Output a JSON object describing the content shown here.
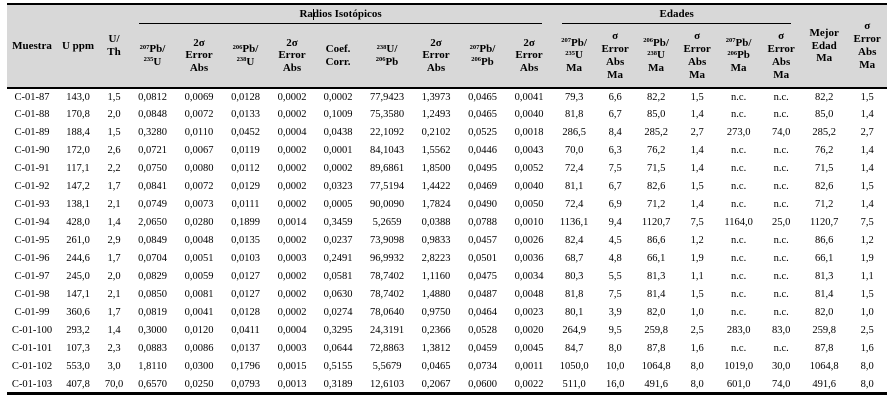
{
  "colors": {
    "header_bg": "#d8d8d8",
    "border": "#000000",
    "text": "#000000"
  },
  "table": {
    "group_headers": {
      "radios_isotopicos": "Radios Isotópicos",
      "edades": "Edades"
    },
    "column_headers": [
      "Muestra",
      "U ppm",
      "U/\nTh",
      "{207}Pb/\n{235}U",
      "2σ\nError\nAbs",
      "{206}Pb/\n{238}U",
      "2σ\nError\nAbs",
      "Coef.\nCorr.",
      "{238}U/\n{206}Pb",
      "2σ\nError\nAbs",
      "{207}Pb/\n{206}Pb",
      "2σ\nError\nAbs",
      "{207}Pb/\n{235}U\nMa",
      "σ\nError\nAbs\nMa",
      "{206}Pb/\n{238}U\nMa",
      "σ\nError\nAbs\nMa",
      "{207}Pb/\n{206}Pb\nMa",
      "σ\nError\nAbs\nMa",
      "Mejor\nEdad\nMa",
      "σ\nError\nAbs\nMa"
    ],
    "rows": [
      [
        "C-01-87",
        "143,0",
        "1,5",
        "0,0812",
        "0,0069",
        "0,0128",
        "0,0002",
        "0,0002",
        "77,9423",
        "1,3973",
        "0,0465",
        "0,0041",
        "79,3",
        "6,6",
        "82,2",
        "1,5",
        "n.c.",
        "n.c.",
        "82,2",
        "1,5"
      ],
      [
        "C-01-88",
        "170,8",
        "2,0",
        "0,0848",
        "0,0072",
        "0,0133",
        "0,0002",
        "0,1009",
        "75,3580",
        "1,2493",
        "0,0465",
        "0,0040",
        "81,8",
        "6,7",
        "85,0",
        "1,4",
        "n.c.",
        "n.c.",
        "85,0",
        "1,4"
      ],
      [
        "C-01-89",
        "188,4",
        "1,5",
        "0,3280",
        "0,0110",
        "0,0452",
        "0,0004",
        "0,0438",
        "22,1092",
        "0,2102",
        "0,0525",
        "0,0018",
        "286,5",
        "8,4",
        "285,2",
        "2,7",
        "273,0",
        "74,0",
        "285,2",
        "2,7"
      ],
      [
        "C-01-90",
        "172,0",
        "2,6",
        "0,0721",
        "0,0067",
        "0,0119",
        "0,0002",
        "0,0001",
        "84,1043",
        "1,5562",
        "0,0446",
        "0,0043",
        "70,0",
        "6,3",
        "76,2",
        "1,4",
        "n.c.",
        "n.c.",
        "76,2",
        "1,4"
      ],
      [
        "C-01-91",
        "117,1",
        "2,2",
        "0,0750",
        "0,0080",
        "0,0112",
        "0,0002",
        "0,0002",
        "89,6861",
        "1,8500",
        "0,0495",
        "0,0052",
        "72,4",
        "7,5",
        "71,5",
        "1,4",
        "n.c.",
        "n.c.",
        "71,5",
        "1,4"
      ],
      [
        "C-01-92",
        "147,2",
        "1,7",
        "0,0841",
        "0,0072",
        "0,0129",
        "0,0002",
        "0,0323",
        "77,5194",
        "1,4422",
        "0,0469",
        "0,0040",
        "81,1",
        "6,7",
        "82,6",
        "1,5",
        "n.c.",
        "n.c.",
        "82,6",
        "1,5"
      ],
      [
        "C-01-93",
        "138,1",
        "2,1",
        "0,0749",
        "0,0073",
        "0,0111",
        "0,0002",
        "0,0005",
        "90,0090",
        "1,7824",
        "0,0490",
        "0,0050",
        "72,4",
        "6,9",
        "71,2",
        "1,4",
        "n.c.",
        "n.c.",
        "71,2",
        "1,4"
      ],
      [
        "C-01-94",
        "428,0",
        "1,4",
        "2,0650",
        "0,0280",
        "0,1899",
        "0,0014",
        "0,3459",
        "5,2659",
        "0,0388",
        "0,0788",
        "0,0010",
        "1136,1",
        "9,4",
        "1120,7",
        "7,5",
        "1164,0",
        "25,0",
        "1120,7",
        "7,5"
      ],
      [
        "C-01-95",
        "261,0",
        "2,9",
        "0,0849",
        "0,0048",
        "0,0135",
        "0,0002",
        "0,0237",
        "73,9098",
        "0,9833",
        "0,0457",
        "0,0026",
        "82,4",
        "4,5",
        "86,6",
        "1,2",
        "n.c.",
        "n.c.",
        "86,6",
        "1,2"
      ],
      [
        "C-01-96",
        "244,6",
        "1,7",
        "0,0704",
        "0,0051",
        "0,0103",
        "0,0003",
        "0,2491",
        "96,9932",
        "2,8223",
        "0,0501",
        "0,0036",
        "68,7",
        "4,8",
        "66,1",
        "1,9",
        "n.c.",
        "n.c.",
        "66,1",
        "1,9"
      ],
      [
        "C-01-97",
        "245,0",
        "2,0",
        "0,0829",
        "0,0059",
        "0,0127",
        "0,0002",
        "0,0581",
        "78,7402",
        "1,1160",
        "0,0475",
        "0,0034",
        "80,3",
        "5,5",
        "81,3",
        "1,1",
        "n.c.",
        "n.c.",
        "81,3",
        "1,1"
      ],
      [
        "C-01-98",
        "147,1",
        "2,1",
        "0,0850",
        "0,0081",
        "0,0127",
        "0,0002",
        "0,0630",
        "78,7402",
        "1,4880",
        "0,0487",
        "0,0048",
        "81,8",
        "7,5",
        "81,4",
        "1,5",
        "n.c.",
        "n.c.",
        "81,4",
        "1,5"
      ],
      [
        "C-01-99",
        "360,6",
        "1,7",
        "0,0819",
        "0,0041",
        "0,0128",
        "0,0002",
        "0,0274",
        "78,0640",
        "0,9750",
        "0,0464",
        "0,0023",
        "80,1",
        "3,9",
        "82,0",
        "1,0",
        "n.c.",
        "n.c.",
        "82,0",
        "1,0"
      ],
      [
        "C-01-100",
        "293,2",
        "1,4",
        "0,3000",
        "0,0120",
        "0,0411",
        "0,0004",
        "0,3295",
        "24,3191",
        "0,2366",
        "0,0528",
        "0,0020",
        "264,9",
        "9,5",
        "259,8",
        "2,5",
        "283,0",
        "83,0",
        "259,8",
        "2,5"
      ],
      [
        "C-01-101",
        "107,3",
        "2,3",
        "0,0883",
        "0,0086",
        "0,0137",
        "0,0003",
        "0,0644",
        "72,8863",
        "1,3812",
        "0,0459",
        "0,0045",
        "84,7",
        "8,0",
        "87,8",
        "1,6",
        "n.c.",
        "n.c.",
        "87,8",
        "1,6"
      ],
      [
        "C-01-102",
        "553,0",
        "3,0",
        "1,8110",
        "0,0300",
        "0,1796",
        "0,0015",
        "0,5155",
        "5,5679",
        "0,0465",
        "0,0734",
        "0,0011",
        "1050,0",
        "10,0",
        "1064,8",
        "8,0",
        "1019,0",
        "30,0",
        "1064,8",
        "8,0"
      ],
      [
        "C-01-103",
        "407,8",
        "70,0",
        "0,6570",
        "0,0250",
        "0,0793",
        "0,0013",
        "0,3189",
        "12,6103",
        "0,2067",
        "0,0600",
        "0,0022",
        "511,0",
        "16,0",
        "491,6",
        "8,0",
        "601,0",
        "74,0",
        "491,6",
        "8,0"
      ]
    ]
  }
}
